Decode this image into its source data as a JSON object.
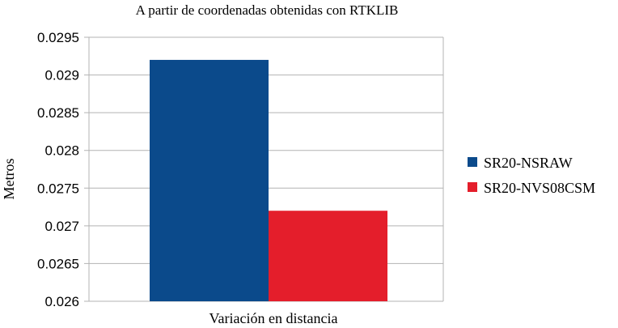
{
  "chart_data": {
    "type": "bar",
    "title": "A partir de coordenadas obtenidas con RTKLIB",
    "xlabel": "Variación en distancia",
    "ylabel": "Metros",
    "categories": [
      "Variación en distancia"
    ],
    "series": [
      {
        "name": "SR20-NSRAW",
        "values": [
          0.0292
        ],
        "color": "#0b4a8b"
      },
      {
        "name": "SR20-NVS08CSM",
        "values": [
          0.0272
        ],
        "color": "#e41e2b"
      }
    ],
    "ylim": [
      0.026,
      0.0295
    ],
    "yticks": [
      "0.026",
      "0.0265",
      "0.027",
      "0.0275",
      "0.028",
      "0.0285",
      "0.029",
      "0.0295"
    ],
    "grid": true,
    "legend_position": "right",
    "grid_color": "#b3b3b3"
  }
}
